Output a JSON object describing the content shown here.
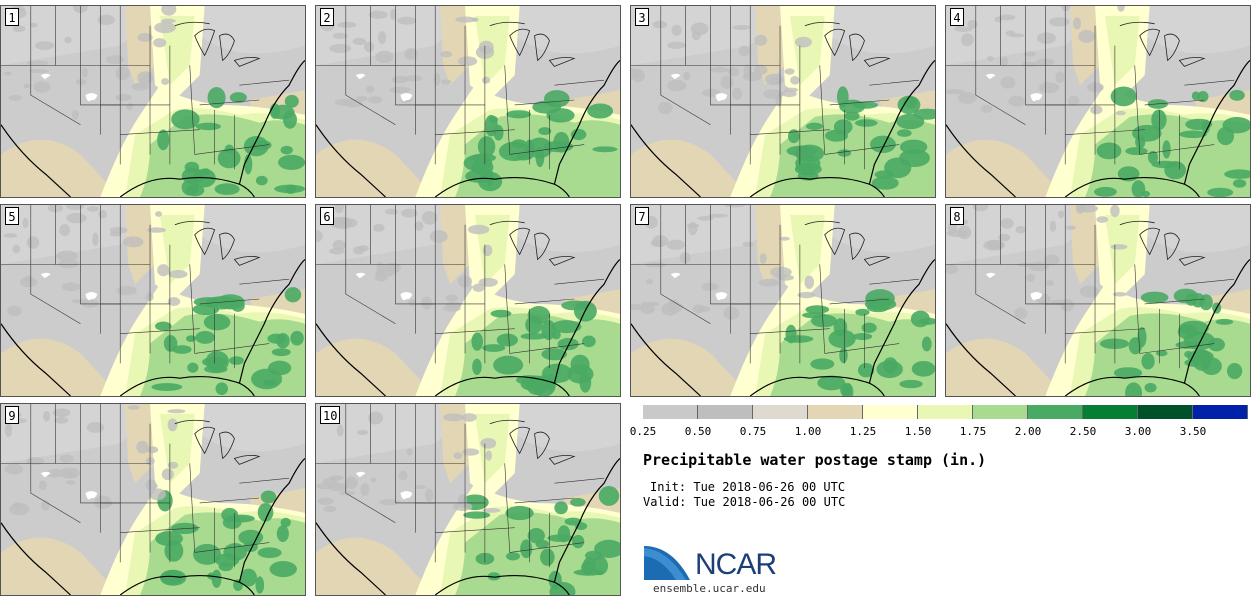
{
  "panels": [
    {
      "label": "1"
    },
    {
      "label": "2"
    },
    {
      "label": "3"
    },
    {
      "label": "4"
    },
    {
      "label": "5"
    },
    {
      "label": "6"
    },
    {
      "label": "7"
    },
    {
      "label": "8"
    },
    {
      "label": "9"
    },
    {
      "label": "10"
    }
  ],
  "colorbar": {
    "colors": [
      "#c9c9c9",
      "#bebebe",
      "#dedad0",
      "#e2d6b4",
      "#ffffd0",
      "#e9f7b4",
      "#a8db90",
      "#49aa63",
      "#067f34",
      "#00512a",
      "#0022aa"
    ],
    "ticks": [
      "0.25",
      "0.50",
      "0.75",
      "1.00",
      "1.25",
      "1.50",
      "1.75",
      "2.00",
      "2.50",
      "3.00",
      "3.50"
    ]
  },
  "title": "Precipitable water postage stamp (in.)",
  "init_text": "Init: Tue 2018-06-26 00 UTC",
  "valid_text": "Valid: Tue 2018-06-26 00 UTC",
  "logo_text": "NCAR",
  "site": "ensemble.ucar.edu"
}
